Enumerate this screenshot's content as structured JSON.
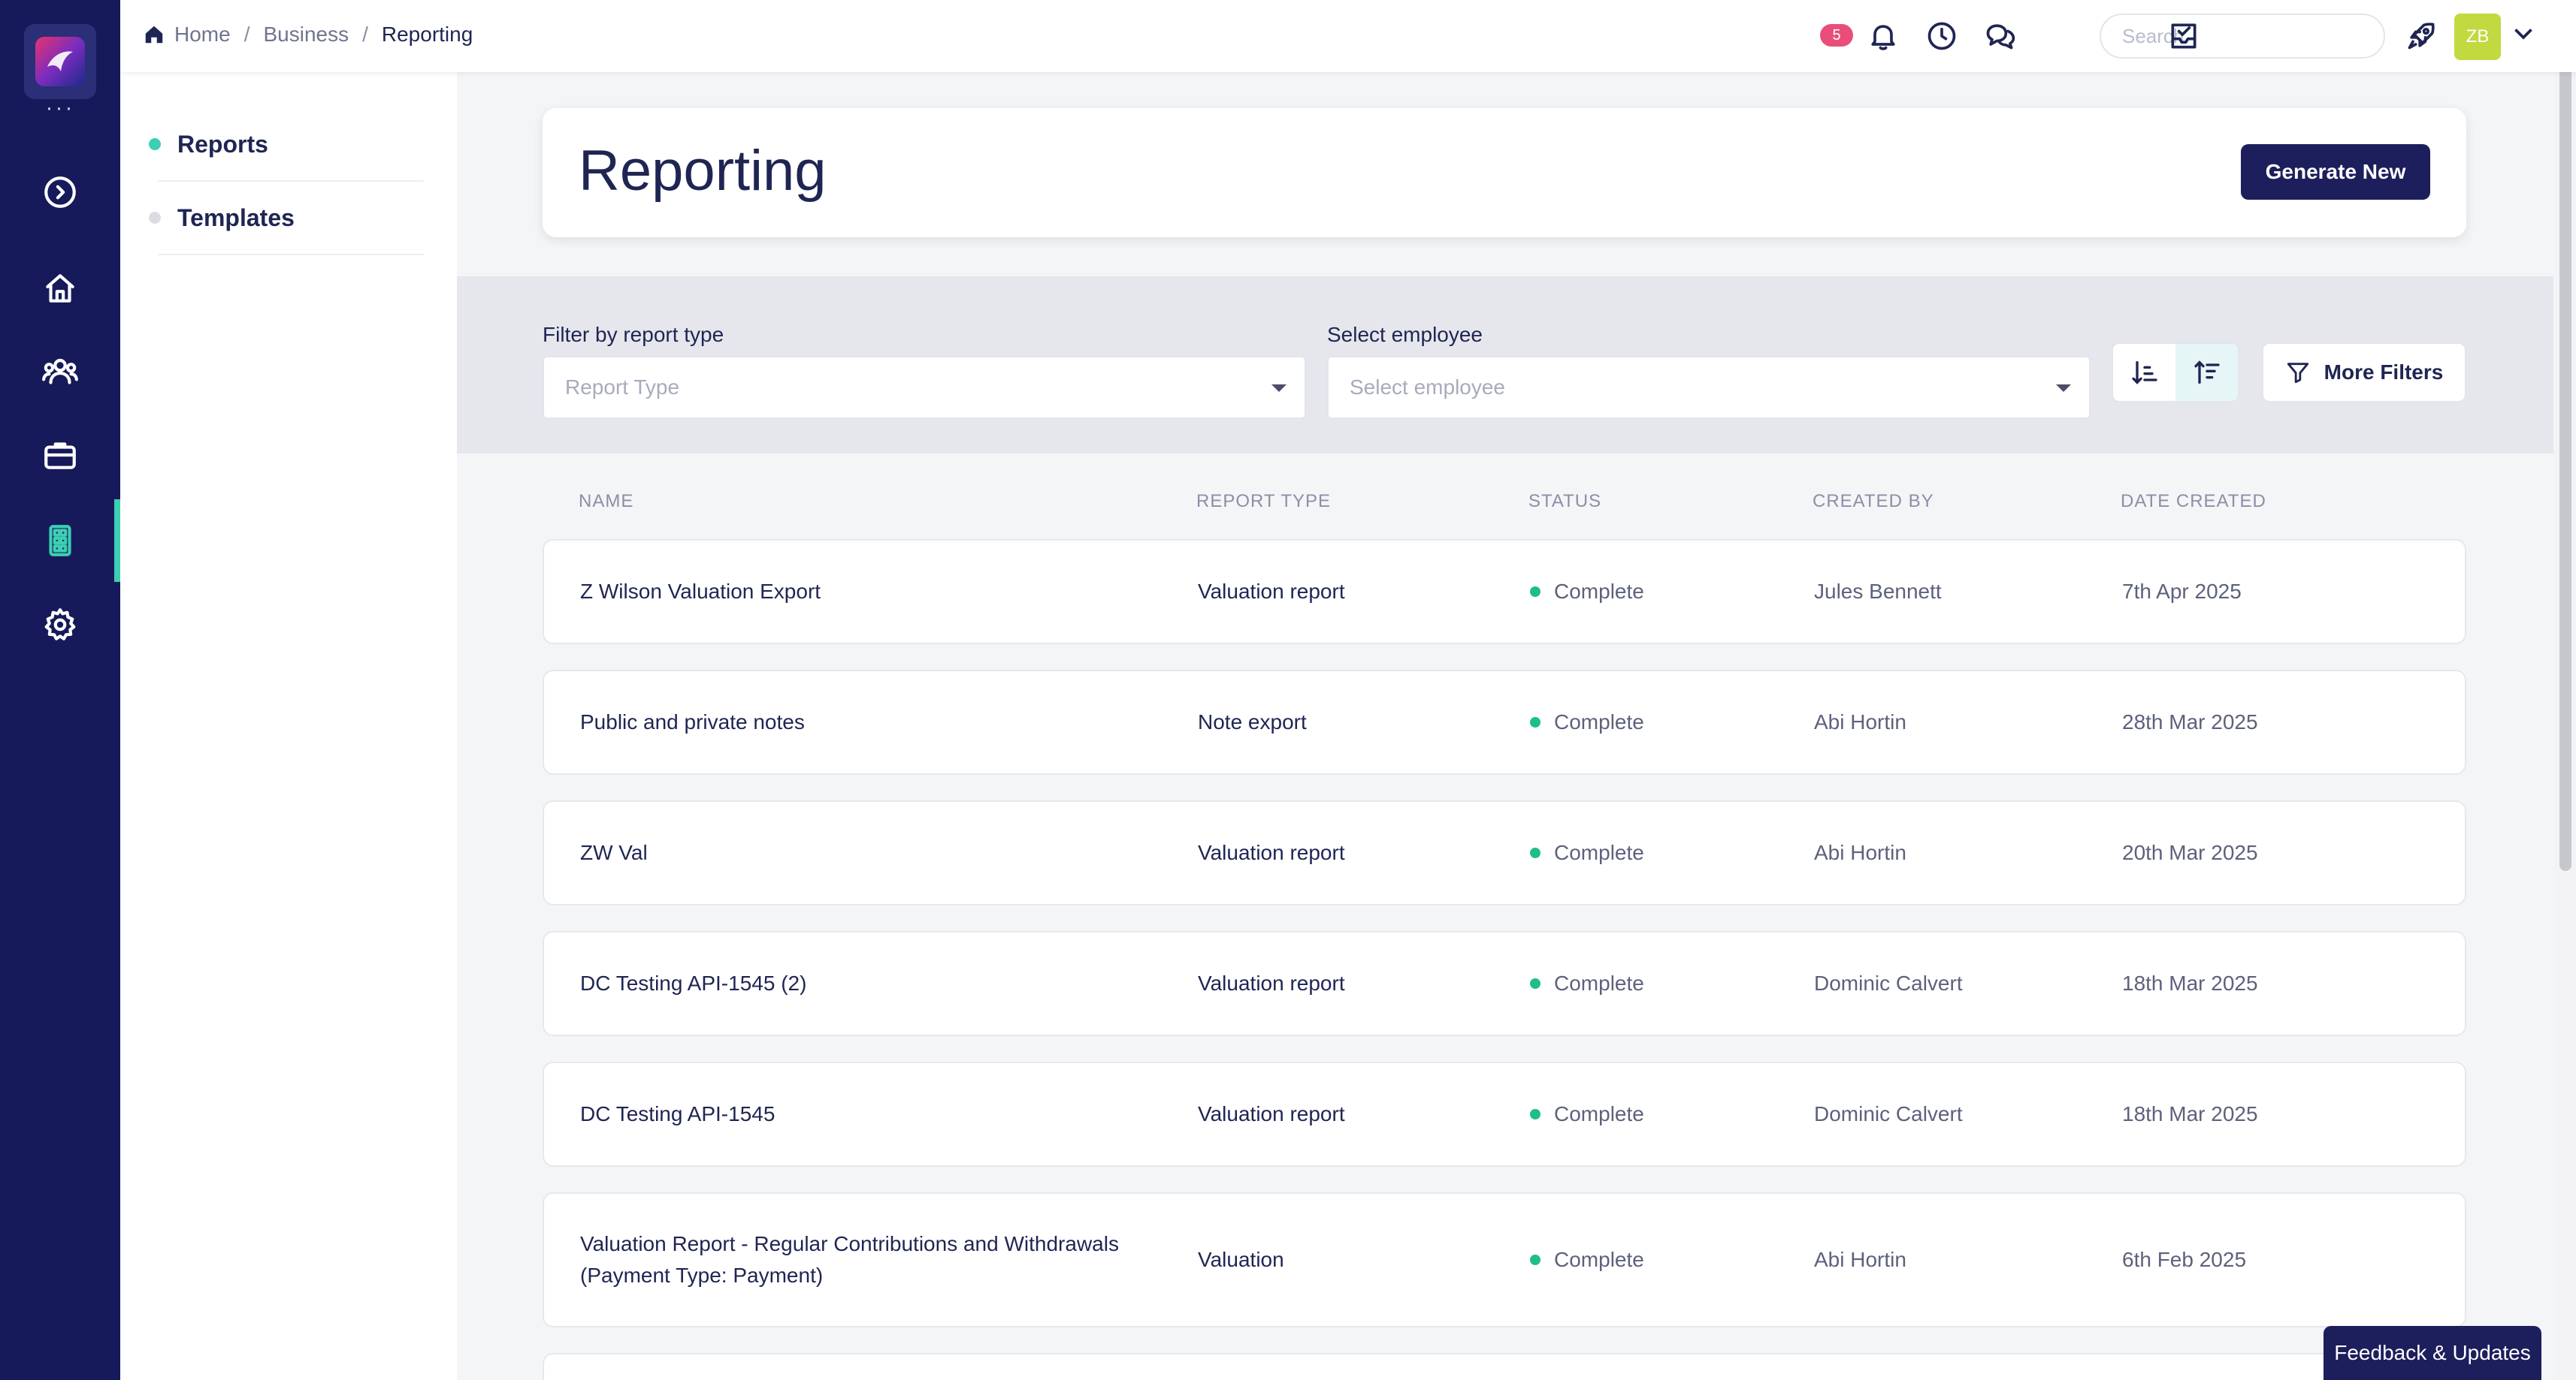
{
  "breadcrumb": {
    "home": "Home",
    "business": "Business",
    "current": "Reporting"
  },
  "topbar": {
    "notification_count": "5",
    "search_placeholder": "Search",
    "avatar_initials": "ZB"
  },
  "subnav": {
    "items": [
      {
        "label": "Reports",
        "active": true,
        "dot_color": "#3ccfb2"
      },
      {
        "label": "Templates",
        "active": false,
        "dot_color": "#dcdde3"
      }
    ]
  },
  "header": {
    "title": "Reporting",
    "generate_label": "Generate New"
  },
  "filters": {
    "report_type_label": "Filter by report type",
    "report_type_placeholder": "Report Type",
    "employee_label": "Select employee",
    "employee_placeholder": "Select employee",
    "more_filters_label": "More Filters"
  },
  "table": {
    "columns": [
      "NAME",
      "REPORT TYPE",
      "STATUS",
      "CREATED BY",
      "DATE CREATED"
    ],
    "rows": [
      {
        "name": "Z Wilson Valuation Export",
        "type": "Valuation report",
        "status": "Complete",
        "created_by": "Jules Bennett",
        "date": "7th Apr 2025"
      },
      {
        "name": "Public and private notes",
        "type": "Note export",
        "status": "Complete",
        "created_by": "Abi Hortin",
        "date": "28th Mar 2025"
      },
      {
        "name": "ZW Val",
        "type": "Valuation report",
        "status": "Complete",
        "created_by": "Abi Hortin",
        "date": "20th Mar 2025"
      },
      {
        "name": "DC Testing API-1545 (2)",
        "type": "Valuation report",
        "status": "Complete",
        "created_by": "Dominic Calvert",
        "date": "18th Mar 2025"
      },
      {
        "name": "DC Testing API-1545",
        "type": "Valuation report",
        "status": "Complete",
        "created_by": "Dominic Calvert",
        "date": "18th Mar 2025"
      },
      {
        "name": "Valuation Report - Regular Contributions and Withdrawals",
        "name_line2": "(Payment Type: Payment)",
        "type": "Valuation",
        "status": "Complete",
        "created_by": "Abi Hortin",
        "date": "6th Feb 2025"
      }
    ]
  },
  "feedback_label": "Feedback & Updates",
  "colors": {
    "rail": "#161a5a",
    "accent": "#3ccfb2",
    "primary_button": "#1d1e5c",
    "status_complete": "#1fbf84",
    "badge": "#e94e7a"
  }
}
